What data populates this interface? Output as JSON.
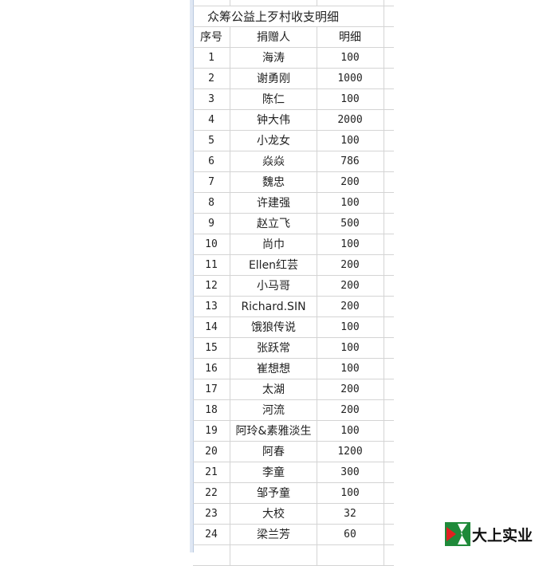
{
  "sheet": {
    "title": "众筹公益上歹村收支明细",
    "headers": [
      "序号",
      "捐赠人",
      "明细"
    ],
    "rows": [
      [
        "1",
        "海涛",
        "100"
      ],
      [
        "2",
        "谢勇刚",
        "1000"
      ],
      [
        "3",
        "陈仁",
        "100"
      ],
      [
        "4",
        "钟大伟",
        "2000"
      ],
      [
        "5",
        "小龙女",
        "100"
      ],
      [
        "6",
        "焱焱",
        "786"
      ],
      [
        "7",
        "魏忠",
        "200"
      ],
      [
        "8",
        "许建强",
        "100"
      ],
      [
        "9",
        "赵立飞",
        "500"
      ],
      [
        "10",
        "尚巾",
        "100"
      ],
      [
        "11",
        "Ellen红芸",
        "200"
      ],
      [
        "12",
        "小马哥",
        "200"
      ],
      [
        "13",
        "Richard.SIN",
        "200"
      ],
      [
        "14",
        "饿狼传说",
        "100"
      ],
      [
        "15",
        "张跃常",
        "100"
      ],
      [
        "16",
        "崔想想",
        "100"
      ],
      [
        "17",
        "太湖",
        "200"
      ],
      [
        "18",
        "河流",
        "200"
      ],
      [
        "19",
        "阿玲&素雅淡生",
        "100"
      ],
      [
        "20",
        "阿春",
        "1200"
      ],
      [
        "21",
        "李童",
        "300"
      ],
      [
        "22",
        "邹予童",
        "100"
      ],
      [
        "23",
        "大校",
        "32"
      ],
      [
        "24",
        "梁兰芳",
        "60"
      ]
    ]
  },
  "watermark": {
    "text": "大上实业",
    "colors": {
      "green": "#1f8a3a",
      "red": "#e02020"
    }
  }
}
